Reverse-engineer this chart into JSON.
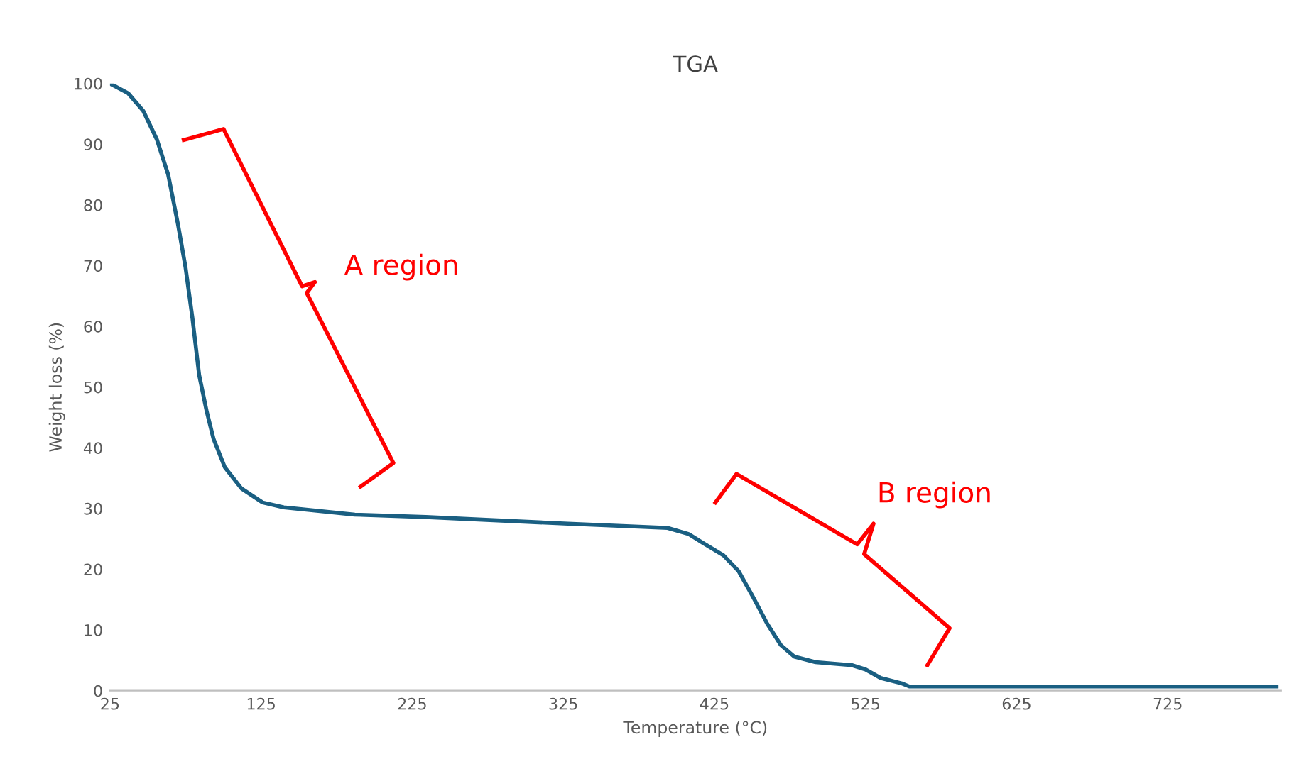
{
  "chart_data": {
    "type": "line",
    "title": "TGA",
    "xlabel": "Temperature (°C)",
    "ylabel": "Weight loss (%)",
    "xlim": [
      25,
      800
    ],
    "xticks": [
      25,
      125,
      225,
      325,
      425,
      525,
      625,
      725
    ],
    "ylim": [
      0,
      100
    ],
    "yticks": [
      0,
      10,
      20,
      30,
      40,
      50,
      60,
      70,
      80,
      90,
      100
    ],
    "grid": false,
    "legend": false,
    "marker": "none",
    "line_style": "solid",
    "annotations": [
      "A region",
      "B region"
    ],
    "series": [
      {
        "color": "#1a5f82",
        "x": [
          25,
          37,
          47,
          56,
          63.5,
          70,
          75,
          79.5,
          84,
          89,
          93.5,
          101,
          112,
          126,
          140,
          187,
          234,
          328,
          375,
          394,
          408,
          417,
          431,
          441,
          450,
          460,
          469,
          478,
          492,
          516,
          525,
          535,
          549,
          554,
          797
        ],
        "values": [
          100,
          98.4,
          95.5,
          90.8,
          85,
          76.8,
          69.7,
          61.5,
          52,
          46,
          41.5,
          36.8,
          33.3,
          31,
          30.2,
          29,
          28.6,
          27.5,
          27,
          26.8,
          25.8,
          24.4,
          22.3,
          19.7,
          15.7,
          11,
          7.5,
          5.6,
          4.7,
          4.2,
          3.5,
          2.1,
          1.2,
          0.7,
          0.7
        ]
      }
    ]
  }
}
